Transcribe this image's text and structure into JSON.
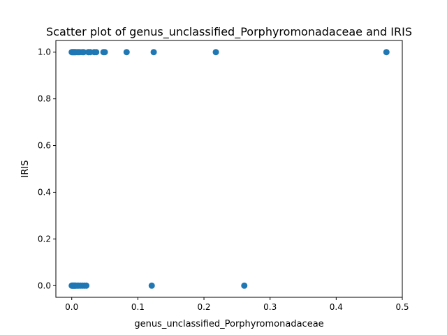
{
  "chart_data": {
    "type": "scatter",
    "title": "Scatter plot of genus_unclassified_Porphyromonadaceae and IRIS",
    "xlabel": "genus_unclassified_Porphyromonadaceae",
    "ylabel": "IRIS",
    "xlim": [
      -0.024,
      0.5
    ],
    "ylim": [
      -0.05,
      1.05
    ],
    "xticks": [
      0.0,
      0.1,
      0.2,
      0.3,
      0.4,
      0.5
    ],
    "xtick_labels": [
      "0.0",
      "0.1",
      "0.2",
      "0.3",
      "0.4",
      "0.5"
    ],
    "yticks": [
      0.0,
      0.2,
      0.4,
      0.6,
      0.8,
      1.0
    ],
    "ytick_labels": [
      "0.0",
      "0.2",
      "0.4",
      "0.6",
      "0.8",
      "1.0"
    ],
    "grid": false,
    "marker_color": "#1f77b4",
    "points": [
      {
        "x": 0.0,
        "y": 1
      },
      {
        "x": 0.001,
        "y": 1
      },
      {
        "x": 0.002,
        "y": 1
      },
      {
        "x": 0.003,
        "y": 1
      },
      {
        "x": 0.004,
        "y": 1
      },
      {
        "x": 0.005,
        "y": 1
      },
      {
        "x": 0.006,
        "y": 1
      },
      {
        "x": 0.008,
        "y": 1
      },
      {
        "x": 0.01,
        "y": 1
      },
      {
        "x": 0.012,
        "y": 1
      },
      {
        "x": 0.016,
        "y": 1
      },
      {
        "x": 0.018,
        "y": 1
      },
      {
        "x": 0.025,
        "y": 1
      },
      {
        "x": 0.028,
        "y": 1
      },
      {
        "x": 0.034,
        "y": 1
      },
      {
        "x": 0.037,
        "y": 1
      },
      {
        "x": 0.048,
        "y": 1
      },
      {
        "x": 0.05,
        "y": 1
      },
      {
        "x": 0.083,
        "y": 1
      },
      {
        "x": 0.124,
        "y": 1
      },
      {
        "x": 0.218,
        "y": 1
      },
      {
        "x": 0.476,
        "y": 1
      },
      {
        "x": 0.0,
        "y": 0
      },
      {
        "x": 0.001,
        "y": 0
      },
      {
        "x": 0.002,
        "y": 0
      },
      {
        "x": 0.003,
        "y": 0
      },
      {
        "x": 0.004,
        "y": 0
      },
      {
        "x": 0.005,
        "y": 0
      },
      {
        "x": 0.006,
        "y": 0
      },
      {
        "x": 0.008,
        "y": 0
      },
      {
        "x": 0.01,
        "y": 0
      },
      {
        "x": 0.013,
        "y": 0
      },
      {
        "x": 0.016,
        "y": 0
      },
      {
        "x": 0.019,
        "y": 0
      },
      {
        "x": 0.022,
        "y": 0
      },
      {
        "x": 0.121,
        "y": 0
      },
      {
        "x": 0.261,
        "y": 0
      }
    ]
  }
}
